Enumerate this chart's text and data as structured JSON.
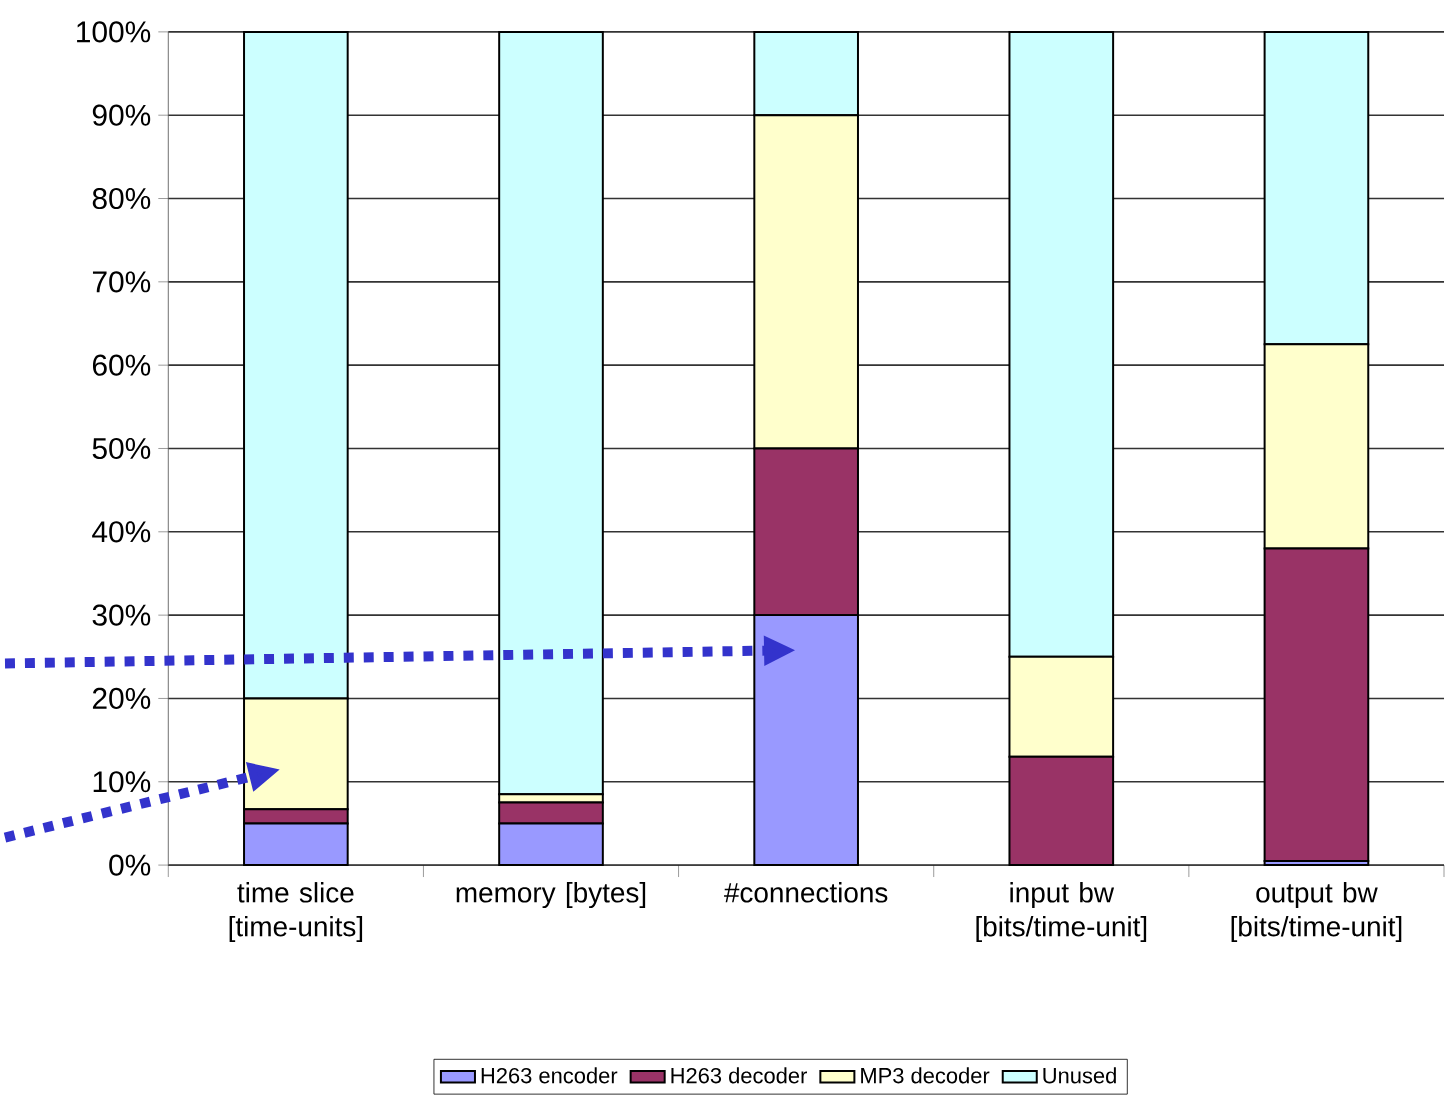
{
  "chart_data": {
    "type": "bar",
    "stacked": true,
    "categories": [
      "time slice [time-units]",
      "memory [bytes]",
      "#connections",
      "input bw [bits/time-unit]",
      "output bw [bits/time-unit]"
    ],
    "series": [
      {
        "name": "H263 encoder",
        "color": "#9999ff",
        "values": [
          5,
          5,
          30,
          0,
          0.5
        ]
      },
      {
        "name": "H263 decoder",
        "color": "#993366",
        "values": [
          1.7,
          2.5,
          20,
          13,
          37.5
        ]
      },
      {
        "name": "MP3 decoder",
        "color": "#ffffcc",
        "values": [
          13.3,
          1,
          40,
          12,
          24.5
        ]
      },
      {
        "name": "Unused",
        "color": "#ccffff",
        "values": [
          80,
          91.5,
          10,
          75,
          37.5
        ]
      }
    ],
    "ylim": [
      0,
      100
    ],
    "yticks": [
      {
        "value": 0,
        "label": "0%"
      },
      {
        "value": 10,
        "label": "10%"
      },
      {
        "value": 20,
        "label": "20%"
      },
      {
        "value": 30,
        "label": "30%"
      },
      {
        "value": 40,
        "label": "40%"
      },
      {
        "value": 50,
        "label": "50%"
      },
      {
        "value": 60,
        "label": "60%"
      },
      {
        "value": 70,
        "label": "70%"
      },
      {
        "value": 80,
        "label": "80%"
      },
      {
        "value": 90,
        "label": "90%"
      },
      {
        "value": 100,
        "label": "100%"
      }
    ],
    "grid": "y",
    "legend": "bottom"
  }
}
